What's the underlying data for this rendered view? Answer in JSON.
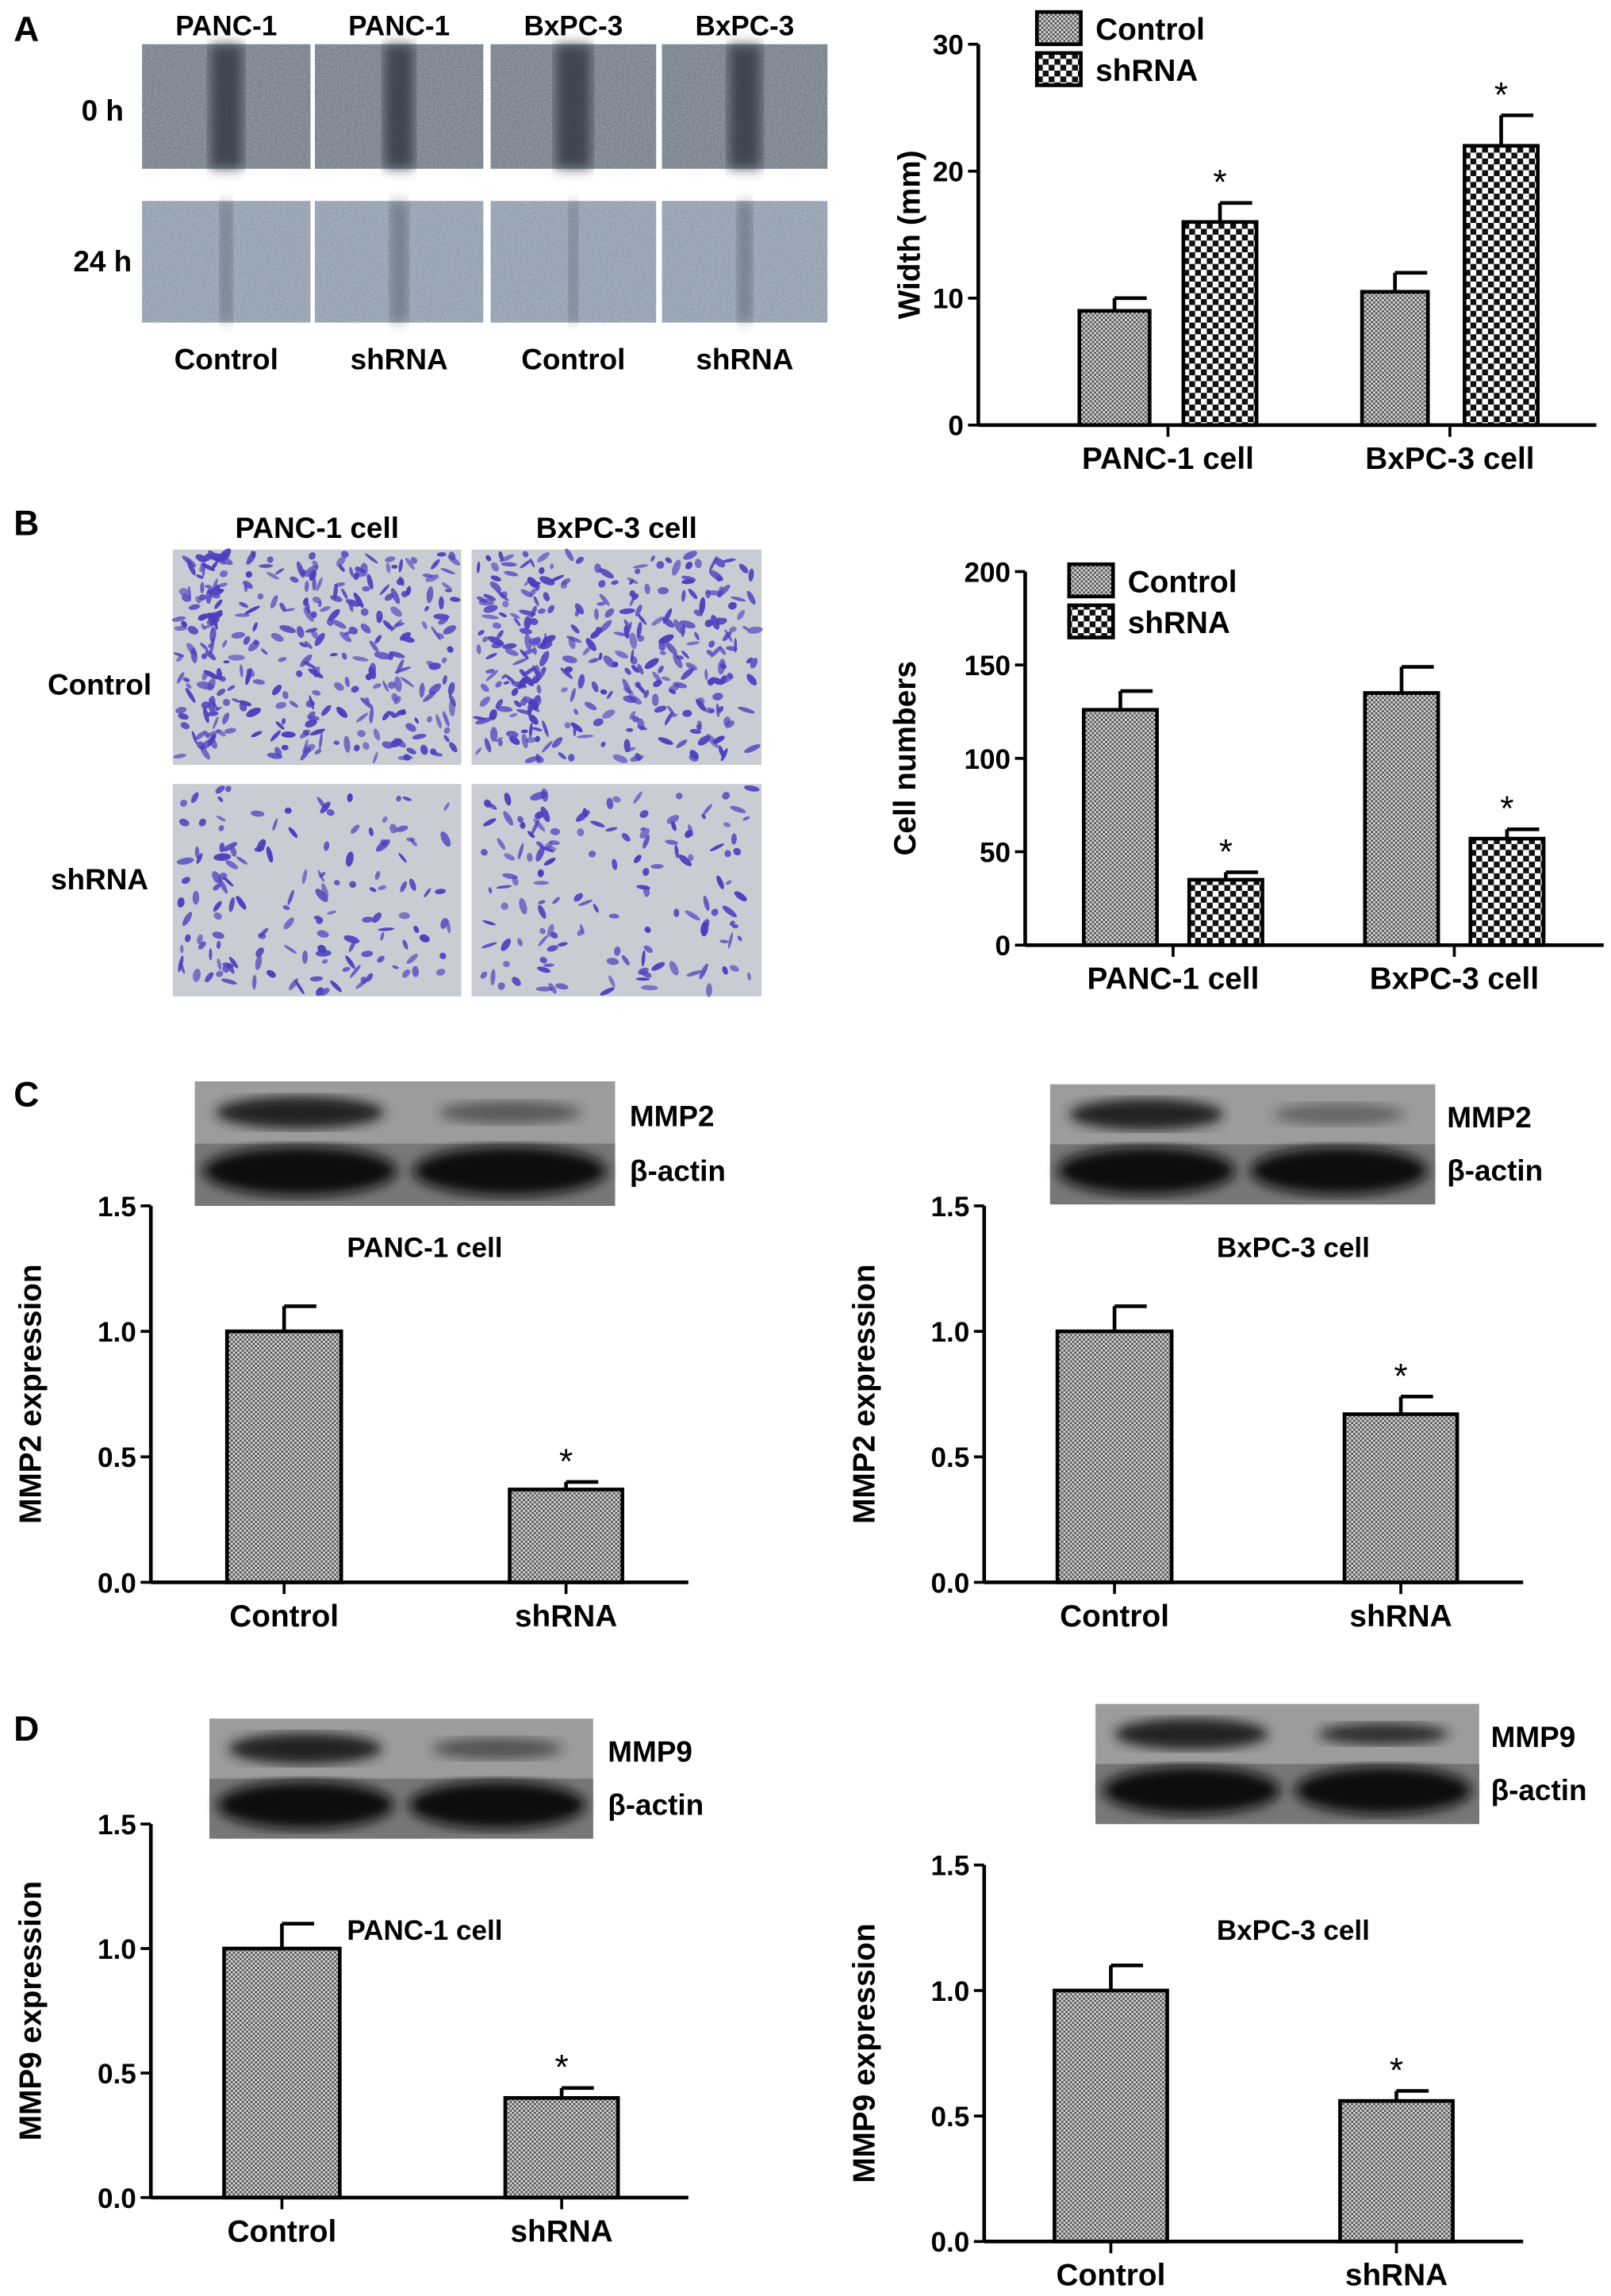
{
  "panels": {
    "a": "A",
    "b": "B",
    "c": "C",
    "d": "D"
  },
  "wound": {
    "columns": [
      "PANC-1",
      "PANC-1",
      "BxPC-3",
      "BxPC-3"
    ],
    "rows": [
      "0 h",
      "24 h"
    ],
    "groups": [
      "Control",
      "shRNA",
      "Control",
      "shRNA"
    ]
  },
  "transwell": {
    "columns": [
      "PANC-1 cell",
      "BxPC-3 cell"
    ],
    "rows": [
      "Control",
      "shRNA"
    ]
  },
  "blots": {
    "c_left": [
      "MMP2",
      "β-actin"
    ],
    "c_right": [
      "MMP2",
      "β-actin"
    ],
    "d_left": [
      "MMP9",
      "β-actin"
    ],
    "d_right": [
      "MMP9",
      "β-actin"
    ]
  },
  "colors": {
    "bar_fill": "#9a9a9a",
    "outline": "#000000",
    "transwell_stain": "#4b3fbf",
    "wound_bg": "#6e7a86"
  },
  "chart_data": [
    {
      "type": "bar",
      "panel": "A",
      "title": "",
      "ylabel": "Width (mm)",
      "ylim": [
        0,
        30
      ],
      "yticks": [
        "0",
        "10",
        "20",
        "30"
      ],
      "categories": [
        "PANC-1 cell",
        "BxPC-3 cell"
      ],
      "series": [
        {
          "name": "Control",
          "values": [
            9,
            10.5
          ],
          "errors": [
            1,
            1.5
          ]
        },
        {
          "name": "shRNA",
          "values": [
            16,
            22
          ],
          "errors": [
            1.5,
            2.4
          ]
        }
      ],
      "significance": [
        "*",
        "*"
      ],
      "legend": "top-left"
    },
    {
      "type": "bar",
      "panel": "B",
      "title": "",
      "ylabel": "Cell numbers",
      "ylim": [
        0,
        200
      ],
      "yticks": [
        "0",
        "50",
        "100",
        "150",
        "200"
      ],
      "categories": [
        "PANC-1 cell",
        "BxPC-3 cell"
      ],
      "series": [
        {
          "name": "Control",
          "values": [
            126,
            135
          ],
          "errors": [
            10,
            14
          ]
        },
        {
          "name": "shRNA",
          "values": [
            35,
            57
          ],
          "errors": [
            4,
            5
          ]
        }
      ],
      "significance": [
        "*",
        "*"
      ],
      "legend": "top-left"
    },
    {
      "type": "bar",
      "panel": "C",
      "title": "PANC-1 cell",
      "ylabel": "MMP2 expression",
      "ylim": [
        0,
        1.5
      ],
      "yticks": [
        "0.0",
        "0.5",
        "1.0",
        "1.5"
      ],
      "categories": [
        "Control",
        "shRNA"
      ],
      "values": [
        1.0,
        0.37
      ],
      "errors": [
        0.1,
        0.03
      ],
      "significance": [
        "",
        "*"
      ]
    },
    {
      "type": "bar",
      "panel": "C",
      "title": "BxPC-3 cell",
      "ylabel": "MMP2 expression",
      "ylim": [
        0,
        1.5
      ],
      "yticks": [
        "0.0",
        "0.5",
        "1.0",
        "1.5"
      ],
      "categories": [
        "Control",
        "shRNA"
      ],
      "values": [
        1.0,
        0.67
      ],
      "errors": [
        0.1,
        0.07
      ],
      "significance": [
        "",
        "*"
      ]
    },
    {
      "type": "bar",
      "panel": "D",
      "title": "PANC-1 cell",
      "ylabel": "MMP9 expression",
      "ylim": [
        0,
        1.5
      ],
      "yticks": [
        "0.0",
        "0.5",
        "1.0",
        "1.5"
      ],
      "categories": [
        "Control",
        "shRNA"
      ],
      "values": [
        1.0,
        0.4
      ],
      "errors": [
        0.1,
        0.04
      ],
      "significance": [
        "",
        "*"
      ]
    },
    {
      "type": "bar",
      "panel": "D",
      "title": "BxPC-3 cell",
      "ylabel": "MMP9 expression",
      "ylim": [
        0,
        1.5
      ],
      "yticks": [
        "0.0",
        "0.5",
        "1.0",
        "1.5"
      ],
      "categories": [
        "Control",
        "shRNA"
      ],
      "values": [
        1.0,
        0.56
      ],
      "errors": [
        0.1,
        0.04
      ],
      "significance": [
        "",
        "*"
      ]
    }
  ]
}
